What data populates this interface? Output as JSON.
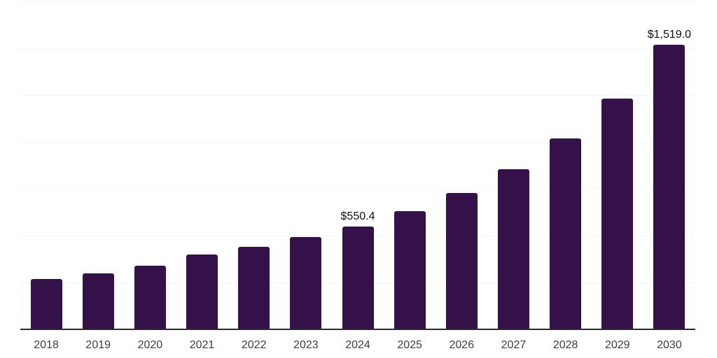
{
  "chart_data": {
    "type": "bar",
    "title": "",
    "xlabel": "",
    "ylabel": "",
    "categories": [
      "2018",
      "2019",
      "2020",
      "2021",
      "2022",
      "2023",
      "2024",
      "2025",
      "2026",
      "2027",
      "2028",
      "2029",
      "2030"
    ],
    "values": [
      270,
      297,
      338,
      400,
      442,
      494,
      550.4,
      631,
      728,
      854,
      1017,
      1230,
      1519
    ],
    "point_labels": {
      "2024": "$550.4",
      "2030": "$1,519.0"
    },
    "ylim": [
      0,
      1750
    ],
    "gridline_step": 250,
    "grid": "horizontal-only",
    "legend": "none",
    "y_axis_tick_labels_visible": false,
    "colors": {
      "bar": "#351149",
      "gridline": "#f4f4f4",
      "axis_line": "#2b2b2b",
      "tick_label": "#3d3d3d",
      "data_label": "#111111",
      "background": "#ffffff"
    }
  }
}
